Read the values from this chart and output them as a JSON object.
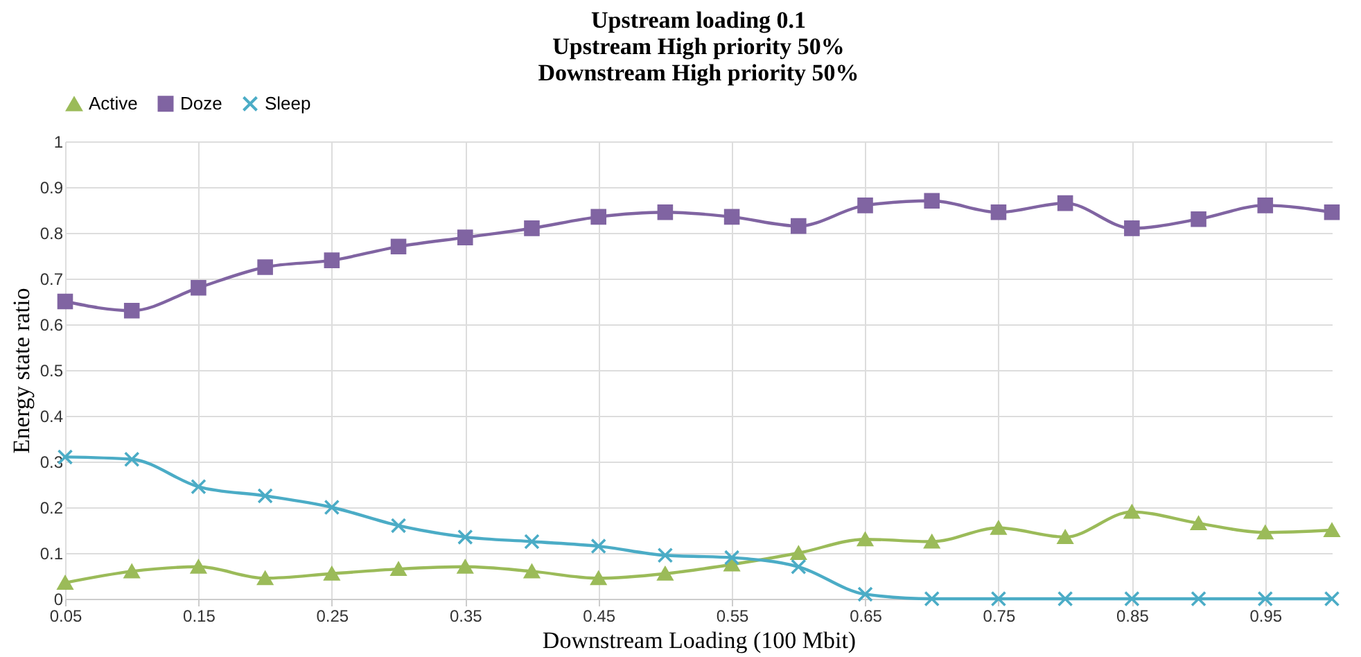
{
  "chart_data": {
    "type": "line",
    "title": [
      "Upstream loading 0.1",
      "Upstream High priority 50%",
      "Downstream High priority 50%"
    ],
    "xlabel": "Downstream  Loading  (100 Mbit)",
    "ylabel": "Energy  state ratio",
    "x": [
      0.05,
      0.1,
      0.15,
      0.2,
      0.25,
      0.3,
      0.35,
      0.4,
      0.45,
      0.5,
      0.55,
      0.6,
      0.65,
      0.7,
      0.75,
      0.8,
      0.85,
      0.9,
      0.95,
      1.0
    ],
    "series": [
      {
        "name": "Active",
        "color": "#9bbb59",
        "marker": "triangle",
        "values": [
          0.035,
          0.06,
          0.07,
          0.045,
          0.055,
          0.065,
          0.07,
          0.06,
          0.045,
          0.055,
          0.075,
          0.1,
          0.13,
          0.125,
          0.155,
          0.135,
          0.19,
          0.165,
          0.145,
          0.15
        ]
      },
      {
        "name": "Doze",
        "color": "#8064a2",
        "marker": "square",
        "values": [
          0.65,
          0.63,
          0.68,
          0.725,
          0.74,
          0.77,
          0.79,
          0.81,
          0.835,
          0.845,
          0.835,
          0.815,
          0.86,
          0.87,
          0.845,
          0.865,
          0.81,
          0.83,
          0.86,
          0.845
        ]
      },
      {
        "name": "Sleep",
        "color": "#4bacc6",
        "marker": "cross",
        "values": [
          0.31,
          0.305,
          0.245,
          0.225,
          0.2,
          0.16,
          0.135,
          0.125,
          0.115,
          0.095,
          0.09,
          0.07,
          0.01,
          0,
          0,
          0,
          0,
          0,
          0,
          0
        ]
      }
    ],
    "xlim": [
      0.05,
      1.0
    ],
    "xticks": [
      0.05,
      0.15,
      0.25,
      0.35,
      0.45,
      0.55,
      0.65,
      0.75,
      0.85,
      0.95
    ],
    "ylim": [
      0,
      1
    ],
    "yticks": [
      0,
      0.1,
      0.2,
      0.3,
      0.4,
      0.5,
      0.6,
      0.7,
      0.8,
      0.9,
      1
    ],
    "grid": true,
    "legend": "top",
    "line_style": "solid"
  }
}
